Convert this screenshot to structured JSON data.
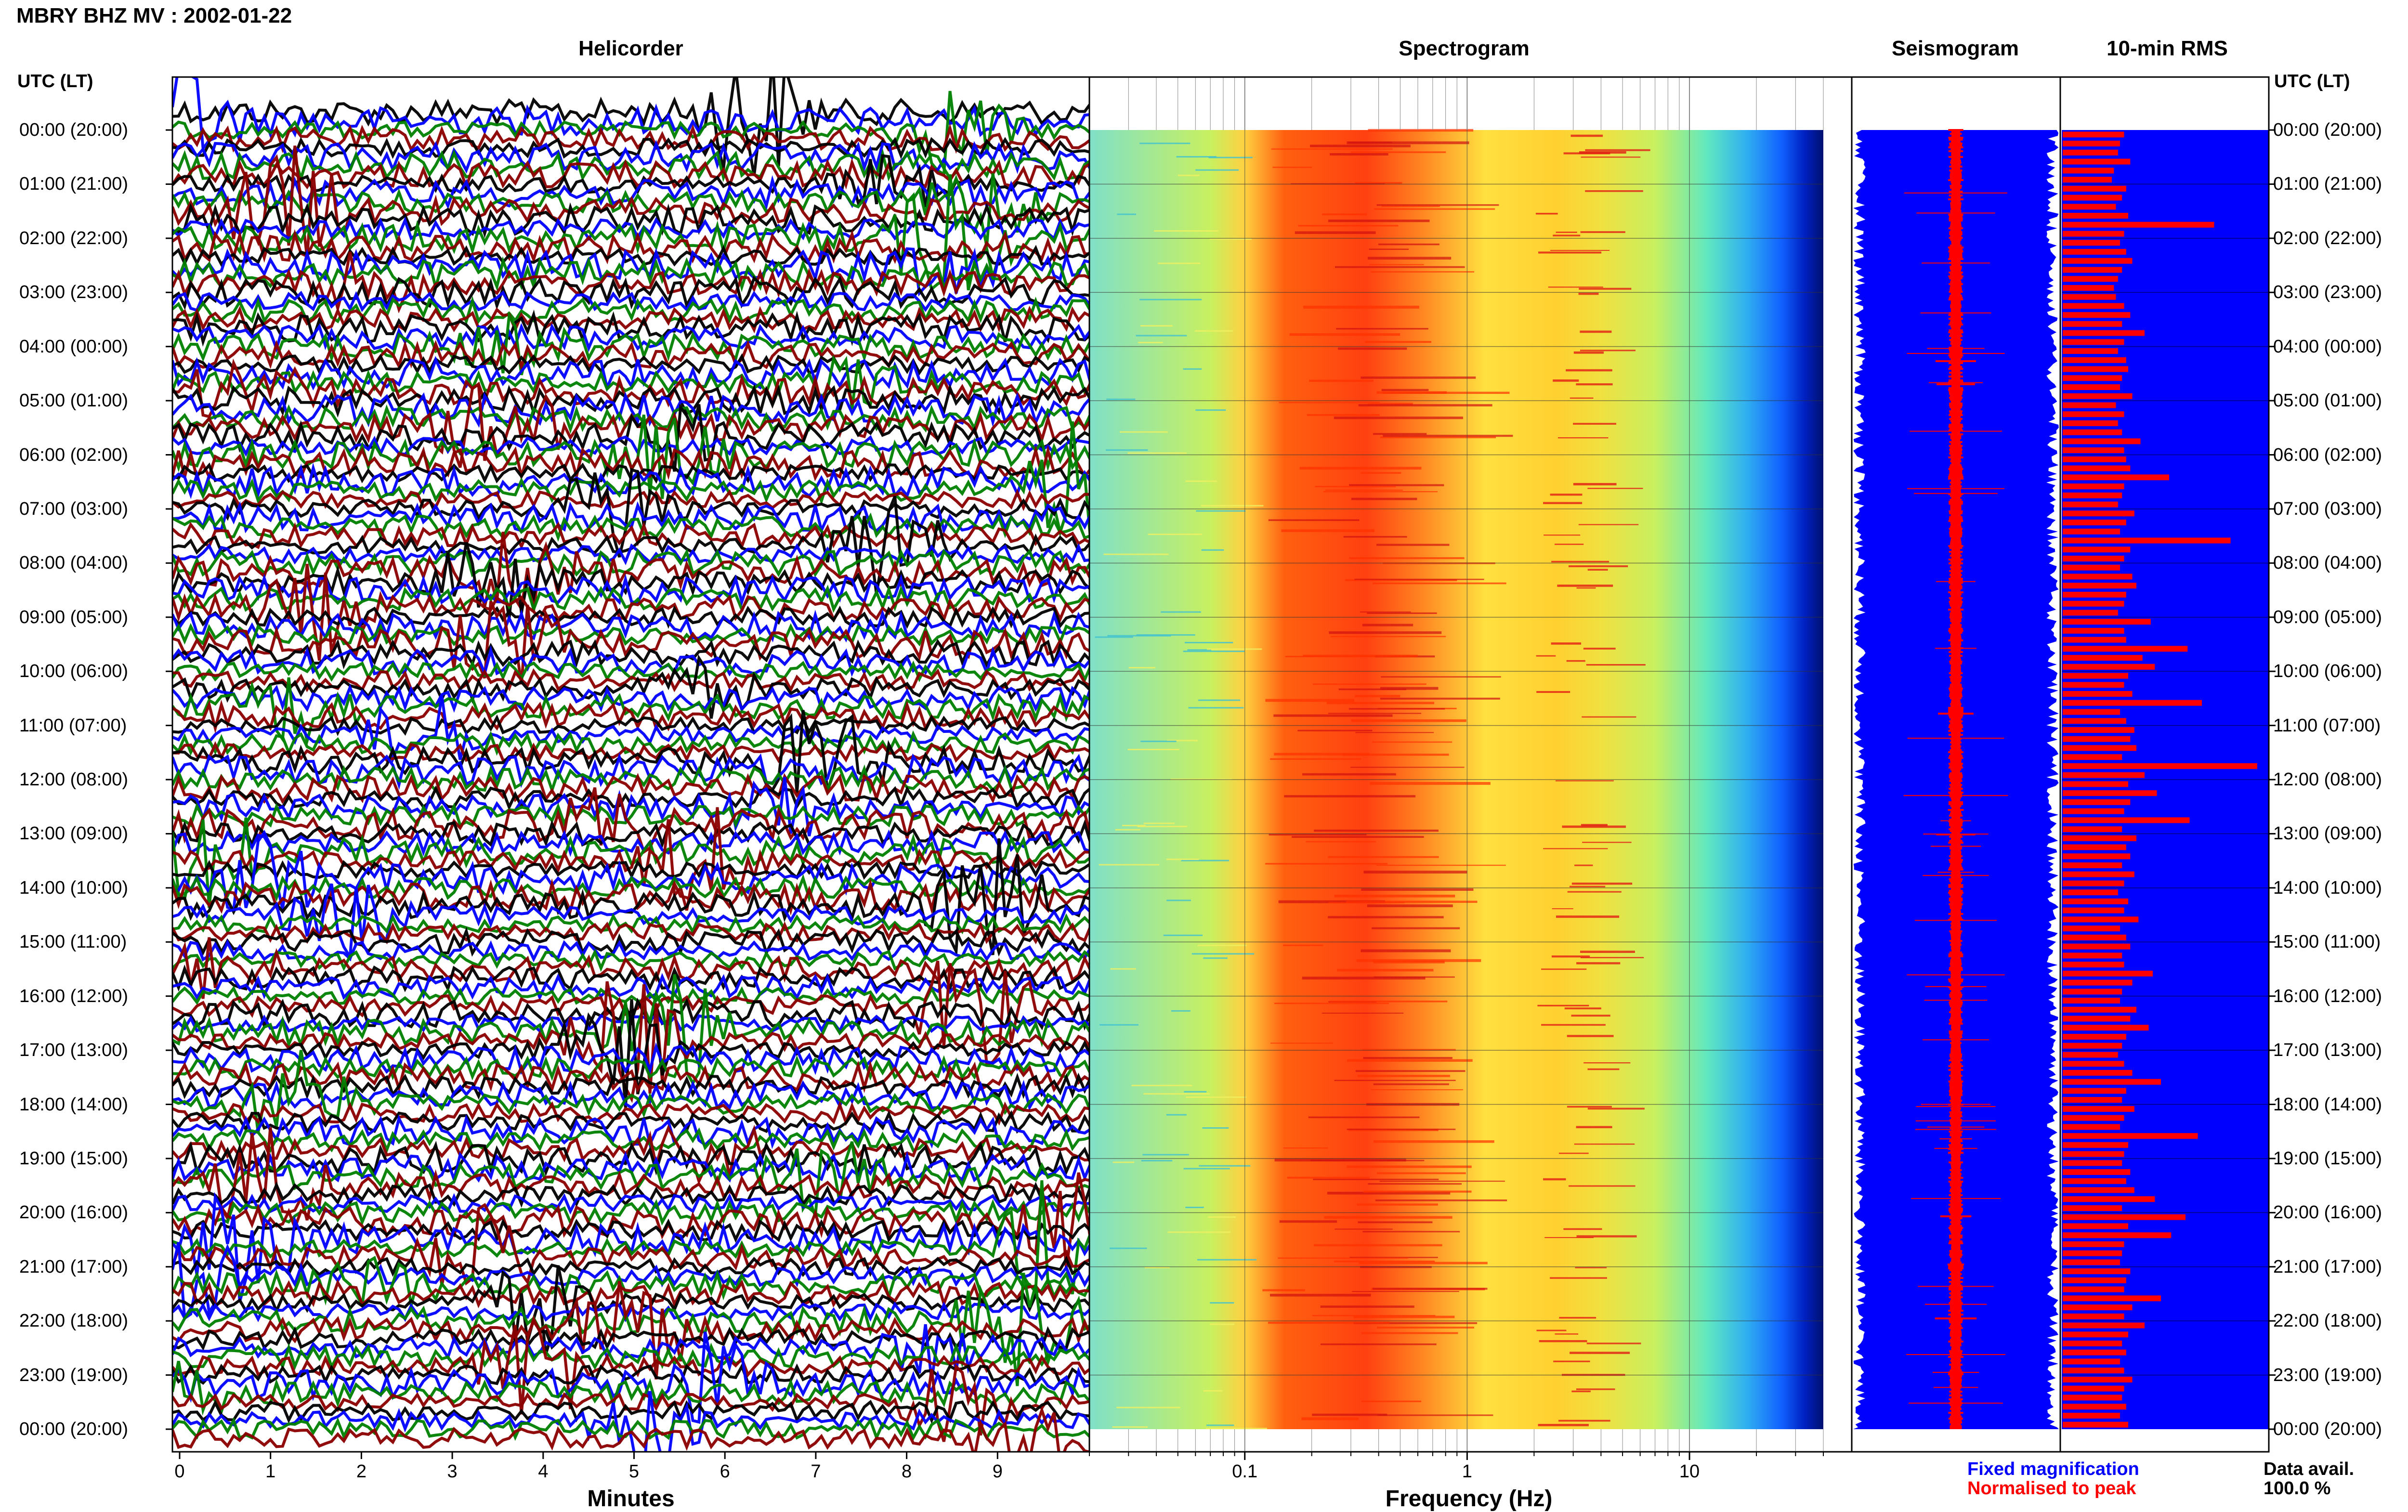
{
  "header": {
    "title": "MBRY BHZ MV : 2002-01-22"
  },
  "panels": {
    "helicorder": "Helicorder",
    "spectrogram": "Spectrogram",
    "seismogram": "Seismogram",
    "rms": "10-min RMS"
  },
  "axis_heading_left": "UTC (LT)",
  "axis_heading_right": "UTC (LT)",
  "time_labels": [
    "00:00 (20:00)",
    "01:00 (21:00)",
    "02:00 (22:00)",
    "03:00 (23:00)",
    "04:00 (00:00)",
    "05:00 (01:00)",
    "06:00 (02:00)",
    "07:00 (03:00)",
    "08:00 (04:00)",
    "09:00 (05:00)",
    "10:00 (06:00)",
    "11:00 (07:00)",
    "12:00 (08:00)",
    "13:00 (09:00)",
    "14:00 (10:00)",
    "15:00 (11:00)",
    "16:00 (12:00)",
    "17:00 (13:00)",
    "18:00 (14:00)",
    "19:00 (15:00)",
    "20:00 (16:00)",
    "21:00 (17:00)",
    "22:00 (18:00)",
    "23:00 (19:00)",
    "00:00 (20:00)"
  ],
  "minutes_axis": {
    "label": "Minutes",
    "ticks": [
      "0",
      "1",
      "2",
      "3",
      "4",
      "5",
      "6",
      "7",
      "8",
      "9"
    ]
  },
  "frequency_axis": {
    "label": "Frequency (Hz)",
    "ticks": [
      "0.1",
      "1",
      "10"
    ]
  },
  "legend": {
    "fixed": "Fixed magnification",
    "normalised": "Normalised to peak",
    "fixed_color": "#0000ff",
    "normalised_color": "#ff0000"
  },
  "data_avail": {
    "label": "Data avail.",
    "value": "100.0 %"
  },
  "colors": {
    "heli_traces": [
      "#000000",
      "#0000ff",
      "#008000",
      "#8b0000"
    ],
    "seis_fixed": "#0000ff",
    "seis_norm": "#ff0000",
    "rms_bg": "#0000ff",
    "rms_bar": "#ff0000"
  },
  "chart_data": [
    {
      "type": "line",
      "title": "Helicorder",
      "xlabel": "Minutes",
      "x_range": [
        0,
        10
      ],
      "rows": 144,
      "row_minutes": 10
    },
    {
      "type": "heatmap",
      "title": "Spectrogram",
      "xlabel": "Frequency (Hz)",
      "x_scale": "log",
      "x_range": [
        0.02,
        40
      ],
      "y_range_utc": [
        "00:00",
        "24:00"
      ],
      "peak_band_hz": [
        0.15,
        0.6
      ],
      "secondary_band_hz": [
        2,
        5
      ]
    },
    {
      "type": "line",
      "title": "Seismogram",
      "series": [
        {
          "name": "Fixed magnification"
        },
        {
          "name": "Normalised to peak"
        }
      ]
    },
    {
      "type": "bar",
      "title": "10-min RMS",
      "orientation": "horizontal",
      "interval_minutes": 10,
      "values_relative": [
        0.3,
        0.28,
        0.27,
        0.33,
        0.25,
        0.24,
        0.31,
        0.29,
        0.26,
        0.32,
        0.74,
        0.3,
        0.28,
        0.31,
        0.34,
        0.29,
        0.27,
        0.25,
        0.26,
        0.3,
        0.33,
        0.29,
        0.4,
        0.3,
        0.27,
        0.31,
        0.32,
        0.29,
        0.28,
        0.34,
        0.26,
        0.3,
        0.27,
        0.29,
        0.38,
        0.3,
        0.31,
        0.33,
        0.52,
        0.3,
        0.29,
        0.27,
        0.35,
        0.31,
        0.28,
        0.82,
        0.33,
        0.3,
        0.28,
        0.34,
        0.36,
        0.31,
        0.3,
        0.27,
        0.43,
        0.3,
        0.31,
        0.61,
        0.39,
        0.45,
        0.32,
        0.3,
        0.34,
        0.68,
        0.28,
        0.31,
        0.35,
        0.33,
        0.36,
        0.29,
        0.95,
        0.4,
        0.32,
        0.46,
        0.33,
        0.3,
        0.62,
        0.29,
        0.36,
        0.31,
        0.33,
        0.29,
        0.35,
        0.3,
        0.27,
        0.32,
        0.3,
        0.37,
        0.28,
        0.31,
        0.33,
        0.29,
        0.3,
        0.44,
        0.34,
        0.29,
        0.28,
        0.36,
        0.33,
        0.42,
        0.31,
        0.29,
        0.27,
        0.3,
        0.34,
        0.48,
        0.31,
        0.29,
        0.35,
        0.3,
        0.28,
        0.66,
        0.32,
        0.3,
        0.29,
        0.33,
        0.31,
        0.35,
        0.45,
        0.29,
        0.6,
        0.32,
        0.53,
        0.3,
        0.29,
        0.28,
        0.33,
        0.31,
        0.3,
        0.48,
        0.34,
        0.3,
        0.4,
        0.32,
        0.29,
        0.31,
        0.28,
        0.3,
        0.34,
        0.3,
        0.29,
        0.31,
        0.28,
        0.32
      ],
      "peak_values_relative": [
        0.92,
        1.0,
        0.68
      ]
    }
  ]
}
